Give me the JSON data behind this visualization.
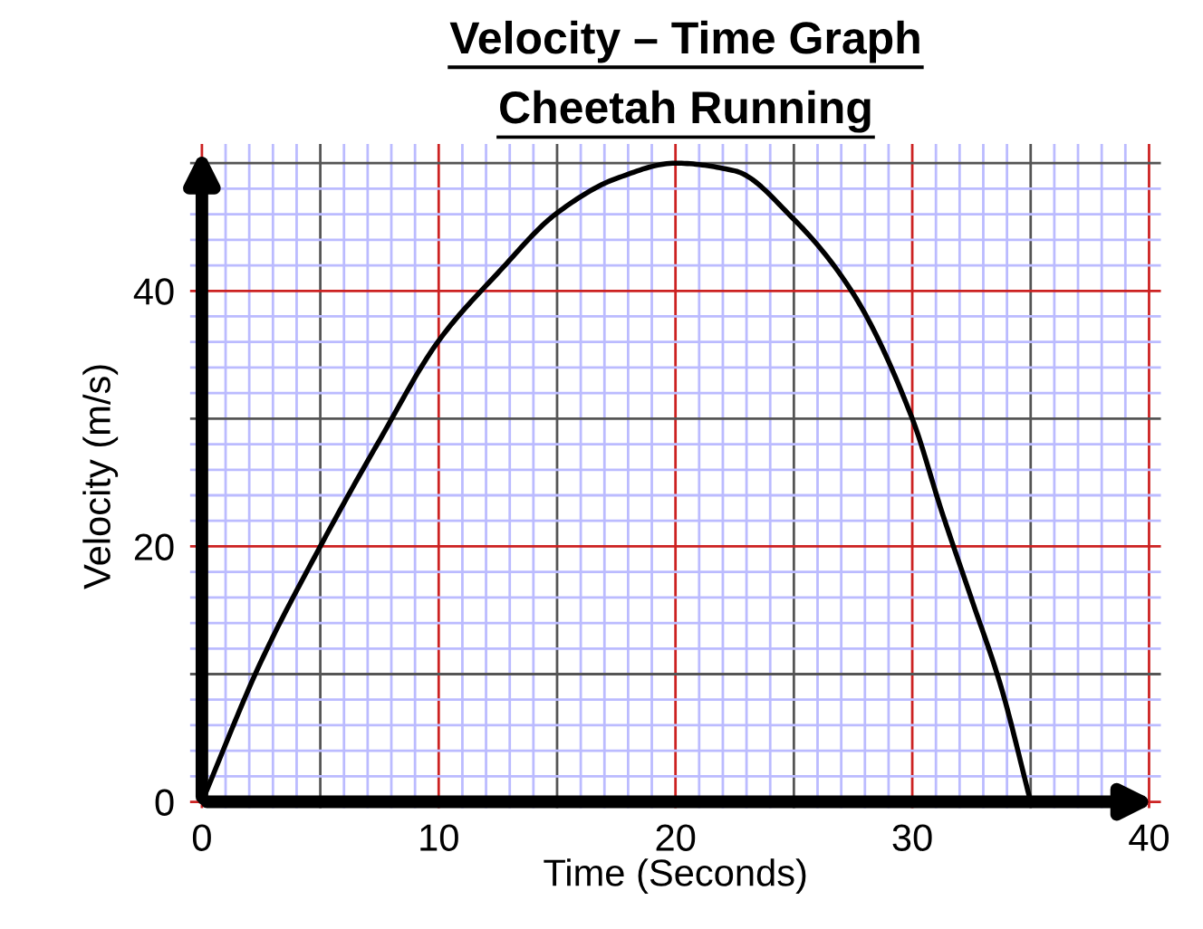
{
  "chart_data": {
    "type": "line",
    "title": "Velocity – Time Graph",
    "subtitle": "Cheetah Running",
    "xlabel": "Time (Seconds)",
    "ylabel": "Velocity (m/s)",
    "xlim": [
      -0.5,
      40.5
    ],
    "ylim": [
      -0.5,
      51.5
    ],
    "xticks": [
      0,
      {
        "value": 1,
        "label": null
      },
      {
        "value": 2,
        "label": null
      },
      {
        "value": 3,
        "label": null
      },
      {
        "value": 4,
        "label": null
      },
      {
        "value": 5,
        "label": null
      },
      {
        "value": 6,
        "label": null
      },
      {
        "value": 7,
        "label": null
      },
      {
        "value": 8,
        "label": null
      },
      {
        "value": 9,
        "label": null
      },
      10,
      {
        "value": 11,
        "label": null
      },
      {
        "value": 12,
        "label": null
      },
      {
        "value": 13,
        "label": null
      },
      {
        "value": 14,
        "label": null
      },
      {
        "value": 15,
        "label": null
      },
      {
        "value": 16,
        "label": null
      },
      {
        "value": 17,
        "label": null
      },
      {
        "value": 18,
        "label": null
      },
      {
        "value": 19,
        "label": null
      },
      20,
      {
        "value": 21,
        "label": null
      },
      {
        "value": 22,
        "label": null
      },
      {
        "value": 23,
        "label": null
      },
      {
        "value": 24,
        "label": null
      },
      {
        "value": 25,
        "label": null
      },
      {
        "value": 26,
        "label": null
      },
      {
        "value": 27,
        "label": null
      },
      {
        "value": 28,
        "label": null
      },
      {
        "value": 29,
        "label": null
      },
      30,
      {
        "value": 31,
        "label": null
      },
      {
        "value": 32,
        "label": null
      },
      {
        "value": 33,
        "label": null
      },
      {
        "value": 34,
        "label": null
      },
      {
        "value": 35,
        "label": null
      },
      {
        "value": 36,
        "label": null
      },
      {
        "value": 37,
        "label": null
      },
      {
        "value": 38,
        "label": null
      },
      {
        "value": 39,
        "label": null
      },
      40
    ],
    "yticks": [
      0,
      {
        "value": 2,
        "label": null
      },
      {
        "value": 4,
        "label": null
      },
      {
        "value": 6,
        "label": null
      },
      {
        "value": 8,
        "label": null
      },
      {
        "value": 10,
        "label": null
      },
      {
        "value": 12,
        "label": null
      },
      {
        "value": 14,
        "label": null
      },
      {
        "value": 16,
        "label": null
      },
      {
        "value": 18,
        "label": null
      },
      20,
      {
        "value": 22,
        "label": null
      },
      {
        "value": 24,
        "label": null
      },
      {
        "value": 26,
        "label": null
      },
      {
        "value": 28,
        "label": null
      },
      {
        "value": 30,
        "label": null
      },
      {
        "value": 32,
        "label": null
      },
      {
        "value": 34,
        "label": null
      },
      {
        "value": 36,
        "label": null
      },
      {
        "value": 38,
        "label": null
      },
      40,
      {
        "value": 42,
        "label": null
      },
      {
        "value": 44,
        "label": null
      },
      {
        "value": 46,
        "label": null
      },
      {
        "value": 48,
        "label": null
      },
      {
        "value": 50,
        "label": null
      }
    ],
    "grid": true,
    "marker": "none",
    "line_style": "solid",
    "series": [
      {
        "color": "#000000",
        "x": [
          0,
          2.5,
          5,
          7.5,
          10,
          12.5,
          15,
          17.5,
          20,
          22.5,
          25,
          27.5,
          30,
          31.25,
          32.5,
          33.75,
          35
        ],
        "values": [
          0,
          11,
          20,
          28.3,
          36.1,
          41.4,
          46.1,
          48.8,
          50,
          49.4,
          45.6,
          39.8,
          30,
          22.7,
          15.9,
          9,
          0
        ]
      }
    ]
  }
}
